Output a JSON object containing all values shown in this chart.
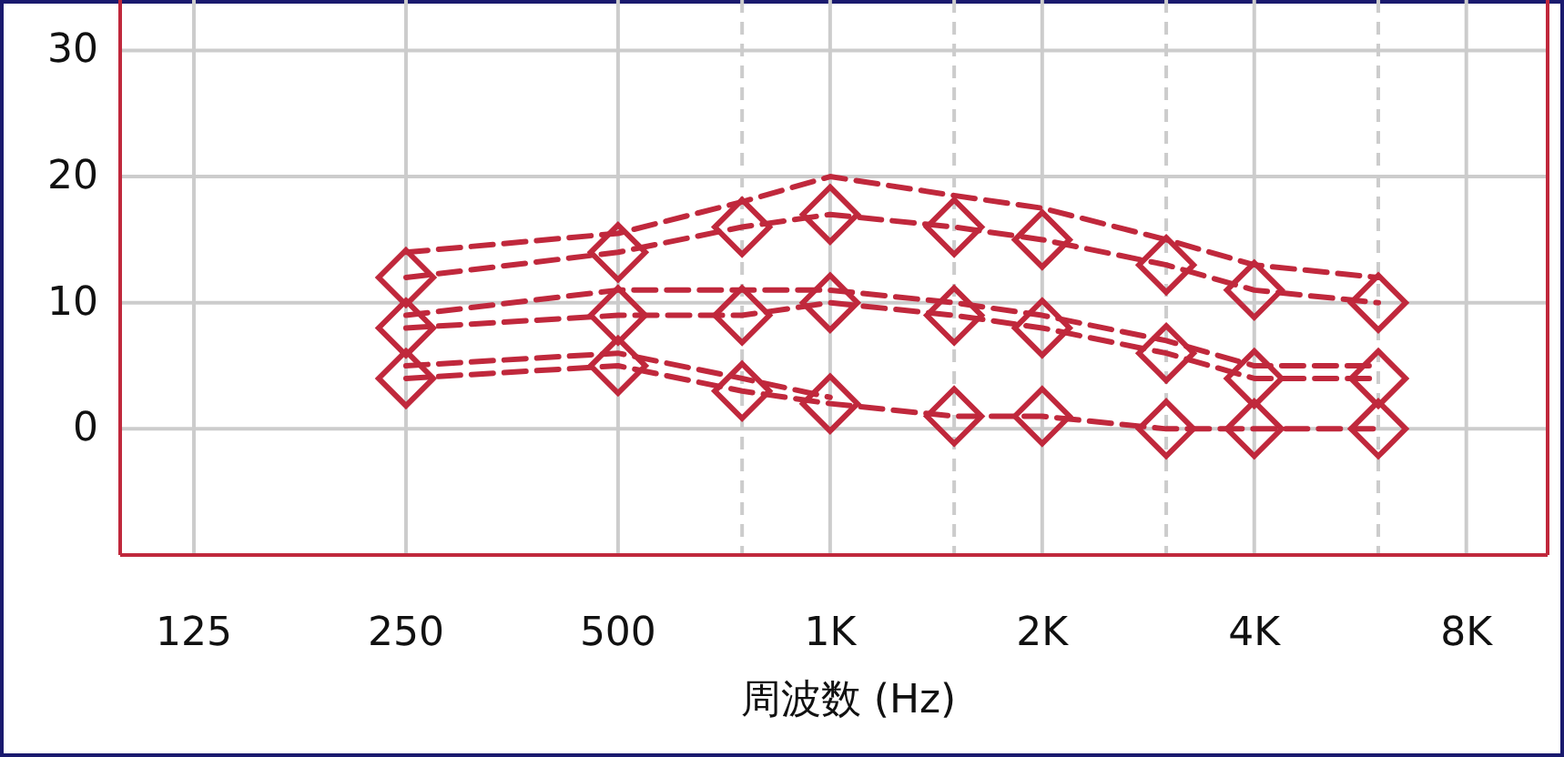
{
  "chart_data": {
    "type": "line",
    "xlabel": "周波数 (Hz)",
    "log": "x",
    "grid": true,
    "marker": "diamond",
    "xlim": [
      100,
      10250
    ],
    "ylim": [
      -10,
      34
    ],
    "xticks": [
      {
        "value": 125,
        "label": "125"
      },
      {
        "value": 250,
        "label": "250"
      },
      {
        "value": 500,
        "label": "500"
      },
      {
        "value": 750,
        "label": null
      },
      {
        "value": 1000,
        "label": "1K"
      },
      {
        "value": 1500,
        "label": null
      },
      {
        "value": 2000,
        "label": "2K"
      },
      {
        "value": 3000,
        "label": null
      },
      {
        "value": 4000,
        "label": "4K"
      },
      {
        "value": 6000,
        "label": null
      },
      {
        "value": 8000,
        "label": "8K"
      }
    ],
    "yticks": [
      0,
      10,
      20,
      30
    ],
    "x": [
      250,
      500,
      750,
      1000,
      1500,
      2000,
      3000,
      4000,
      6000
    ],
    "series": [
      {
        "color": "#c0283c",
        "line_style": "dashed",
        "marker": "none",
        "values": [
          14,
          15.5,
          18,
          20,
          18.5,
          17.5,
          15,
          13,
          12
        ]
      },
      {
        "color": "#c0283c",
        "line_style": "dashed",
        "values": [
          12,
          14,
          16,
          17,
          16,
          15,
          13,
          11,
          10
        ]
      },
      {
        "color": "#c0283c",
        "line_style": "dashed",
        "marker": "none",
        "values": [
          9,
          11,
          11,
          11,
          10,
          9,
          7,
          5,
          5
        ]
      },
      {
        "color": "#c0283c",
        "line_style": "dashed",
        "values": [
          8,
          9,
          9,
          10,
          9,
          8,
          6,
          4,
          4
        ]
      },
      {
        "color": "#c0283c",
        "line_style": "dashed",
        "marker": "none",
        "x": [
          250,
          500,
          750,
          1000
        ],
        "values": [
          5,
          6,
          4,
          2.5
        ]
      },
      {
        "color": "#c0283c",
        "line_style": "dashed",
        "values": [
          4,
          5,
          3,
          2,
          1,
          1,
          0,
          0,
          0
        ]
      }
    ]
  }
}
